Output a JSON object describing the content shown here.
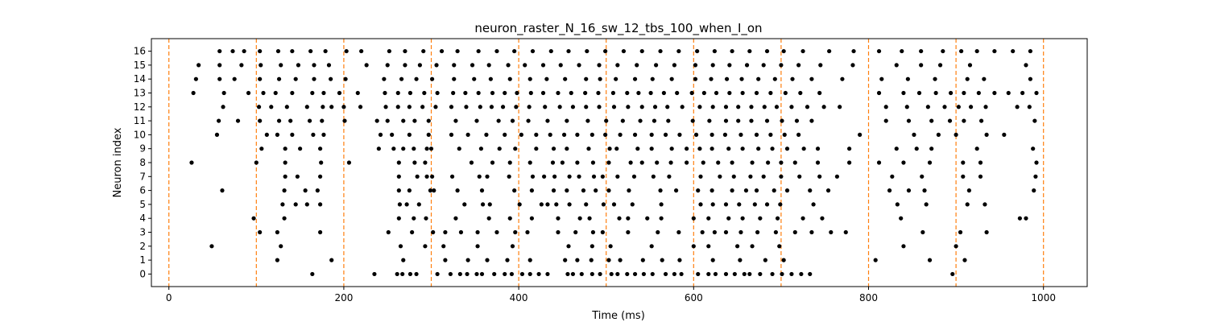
{
  "chart_data": {
    "type": "scatter",
    "title": "neuron_raster_N_16_sw_12_tbs_100_when_I_on",
    "xlabel": "Time (ms)",
    "ylabel": "Neuron index",
    "xlim": [
      -20,
      1050
    ],
    "ylim": [
      -0.9,
      16.9
    ],
    "x_ticks": [
      0,
      200,
      400,
      600,
      800,
      1000
    ],
    "y_ticks": [
      0,
      1,
      2,
      3,
      4,
      5,
      6,
      7,
      8,
      9,
      10,
      11,
      12,
      13,
      14,
      15,
      16
    ],
    "grid": false,
    "legend": "none",
    "marker_color": "#000000",
    "vline_color": "#ff7f0e",
    "vlines": [
      0,
      100,
      200,
      300,
      400,
      500,
      600,
      700,
      800,
      900,
      1000
    ],
    "spikes": [
      {
        "neuron": 0,
        "times": [
          164,
          235,
          261,
          267,
          276,
          283,
          307,
          322,
          333,
          341,
          352,
          358,
          372,
          384,
          392,
          404,
          413,
          423,
          433,
          456,
          462,
          472,
          484,
          493,
          506,
          513,
          524,
          533,
          543,
          553,
          568,
          578,
          586,
          605,
          617,
          625,
          637,
          647,
          658,
          664,
          676,
          690,
          701,
          712,
          723,
          733,
          896
        ]
      },
      {
        "neuron": 1,
        "times": [
          124,
          186,
          268,
          316,
          342,
          364,
          387,
          413,
          453,
          467,
          483,
          503,
          516,
          542,
          564,
          584,
          622,
          653,
          682,
          703,
          808,
          870,
          910
        ]
      },
      {
        "neuron": 2,
        "times": [
          49,
          128,
          265,
          293,
          314,
          353,
          393,
          457,
          484,
          505,
          552,
          600,
          617,
          650,
          667,
          698,
          840,
          900
        ]
      },
      {
        "neuron": 3,
        "times": [
          104,
          124,
          173,
          251,
          278,
          302,
          316,
          334,
          353,
          375,
          396,
          410,
          445,
          465,
          485,
          496,
          525,
          559,
          583,
          610,
          624,
          637,
          654,
          673,
          694,
          716,
          735,
          757,
          774,
          862,
          905,
          935
        ]
      },
      {
        "neuron": 4,
        "times": [
          97,
          132,
          263,
          280,
          294,
          328,
          366,
          390,
          415,
          445,
          470,
          481,
          515,
          525,
          547,
          563,
          600,
          617,
          640,
          656,
          676,
          696,
          725,
          747,
          837,
          973,
          980
        ]
      },
      {
        "neuron": 5,
        "times": [
          130,
          145,
          158,
          173,
          264,
          272,
          286,
          338,
          359,
          367,
          401,
          426,
          433,
          443,
          458,
          477,
          497,
          509,
          530,
          563,
          608,
          622,
          637,
          652,
          670,
          684,
          699,
          737,
          833,
          866,
          913,
          933
        ]
      },
      {
        "neuron": 6,
        "times": [
          61,
          132,
          156,
          170,
          263,
          275,
          299,
          303,
          330,
          358,
          395,
          415,
          440,
          455,
          474,
          488,
          503,
          526,
          562,
          580,
          605,
          621,
          644,
          660,
          672,
          692,
          707,
          733,
          754,
          824,
          846,
          864,
          915,
          989
        ]
      },
      {
        "neuron": 7,
        "times": [
          133,
          147,
          173,
          263,
          284,
          295,
          301,
          324,
          355,
          364,
          389,
          416,
          429,
          441,
          458,
          469,
          486,
          496,
          513,
          532,
          554,
          572,
          608,
          630,
          646,
          665,
          680,
          700,
          721,
          744,
          764,
          827,
          861,
          908,
          928,
          991
        ]
      },
      {
        "neuron": 8,
        "times": [
          26,
          100,
          133,
          174,
          206,
          263,
          281,
          293,
          346,
          370,
          390,
          413,
          439,
          450,
          467,
          485,
          503,
          528,
          541,
          558,
          574,
          592,
          611,
          628,
          644,
          667,
          685,
          700,
          716,
          742,
          778,
          812,
          840,
          870,
          908,
          928,
          992
        ]
      },
      {
        "neuron": 9,
        "times": [
          106,
          133,
          150,
          173,
          240,
          257,
          268,
          280,
          295,
          300,
          332,
          357,
          378,
          396,
          420,
          440,
          455,
          480,
          504,
          512,
          536,
          552,
          575,
          592,
          607,
          621,
          640,
          656,
          674,
          690,
          707,
          726,
          742,
          778,
          832,
          855,
          872,
          924,
          988
        ]
      },
      {
        "neuron": 10,
        "times": [
          55,
          112,
          124,
          141,
          165,
          177,
          242,
          255,
          275,
          297,
          323,
          342,
          363,
          384,
          403,
          420,
          436,
          452,
          467,
          484,
          499,
          516,
          533,
          552,
          568,
          584,
          603,
          621,
          636,
          654,
          672,
          688,
          704,
          720,
          790,
          852,
          880,
          900,
          935,
          955
        ]
      },
      {
        "neuron": 11,
        "times": [
          57,
          79,
          104,
          126,
          139,
          161,
          175,
          201,
          238,
          250,
          268,
          281,
          297,
          328,
          352,
          377,
          393,
          411,
          433,
          455,
          479,
          500,
          519,
          539,
          555,
          571,
          599,
          618,
          637,
          651,
          666,
          684,
          701,
          718,
          735,
          820,
          846,
          872,
          893,
          909,
          929,
          990
        ]
      },
      {
        "neuron": 12,
        "times": [
          62,
          103,
          117,
          135,
          158,
          176,
          186,
          200,
          219,
          248,
          262,
          275,
          290,
          305,
          323,
          340,
          356,
          369,
          382,
          397,
          412,
          430,
          447,
          462,
          477,
          492,
          509,
          525,
          541,
          556,
          570,
          587,
          607,
          622,
          637,
          651,
          666,
          681,
          695,
          712,
          730,
          749,
          767,
          820,
          844,
          868,
          887,
          903,
          917,
          934,
          970,
          984
        ]
      },
      {
        "neuron": 13,
        "times": [
          28,
          63,
          91,
          108,
          122,
          141,
          164,
          177,
          195,
          216,
          247,
          262,
          276,
          292,
          307,
          325,
          339,
          354,
          370,
          384,
          398,
          414,
          428,
          445,
          460,
          476,
          491,
          508,
          524,
          537,
          551,
          566,
          581,
          598,
          612,
          626,
          641,
          656,
          672,
          688,
          705,
          722,
          744,
          812,
          840,
          858,
          877,
          894,
          909,
          926,
          944,
          960,
          976,
          992
        ]
      },
      {
        "neuron": 14,
        "times": [
          31,
          58,
          75,
          104,
          126,
          145,
          166,
          185,
          202,
          246,
          266,
          283,
          301,
          326,
          349,
          368,
          390,
          413,
          432,
          453,
          477,
          493,
          511,
          533,
          553,
          575,
          602,
          620,
          638,
          655,
          674,
          693,
          713,
          735,
          770,
          815,
          845,
          876,
          913,
          932,
          985
        ]
      },
      {
        "neuron": 15,
        "times": [
          34,
          58,
          83,
          105,
          128,
          148,
          166,
          183,
          226,
          250,
          270,
          287,
          306,
          326,
          347,
          366,
          388,
          407,
          428,
          448,
          469,
          492,
          513,
          535,
          557,
          578,
          602,
          622,
          641,
          661,
          680,
          700,
          720,
          745,
          782,
          832,
          860,
          882,
          916,
          980
        ]
      },
      {
        "neuron": 16,
        "times": [
          58,
          73,
          86,
          104,
          125,
          141,
          162,
          179,
          203,
          220,
          252,
          270,
          291,
          312,
          330,
          354,
          375,
          395,
          416,
          437,
          457,
          478,
          499,
          520,
          541,
          562,
          583,
          604,
          624,
          644,
          664,
          684,
          703,
          725,
          755,
          783,
          812,
          838,
          860,
          885,
          906,
          924,
          944,
          965,
          985
        ]
      }
    ]
  }
}
